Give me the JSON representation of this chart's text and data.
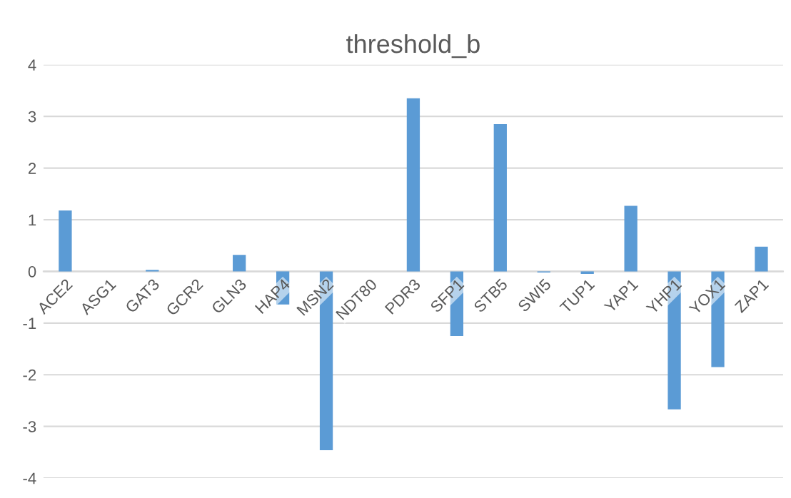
{
  "chart_data": {
    "type": "bar",
    "title": "threshold_b",
    "categories": [
      "ACE2",
      "ASG1",
      "GAT3",
      "GCR2",
      "GLN3",
      "HAP4",
      "MSN2",
      "NDT80",
      "PDR3",
      "SFP1",
      "STB5",
      "SWI5",
      "TUP1",
      "YAP1",
      "YHP1",
      "YOX1",
      "ZAP1"
    ],
    "values": [
      1.18,
      0,
      0.03,
      0,
      0.32,
      -0.64,
      -3.46,
      0,
      3.35,
      -1.25,
      2.85,
      -0.02,
      -0.05,
      1.27,
      -2.67,
      -1.85,
      0.48
    ],
    "color": "#5b9bd5",
    "ylim": [
      -4,
      4
    ],
    "yticks": [
      -4,
      -3,
      -2,
      -1,
      0,
      1,
      2,
      3,
      4
    ],
    "grid": "y",
    "legend": false
  }
}
